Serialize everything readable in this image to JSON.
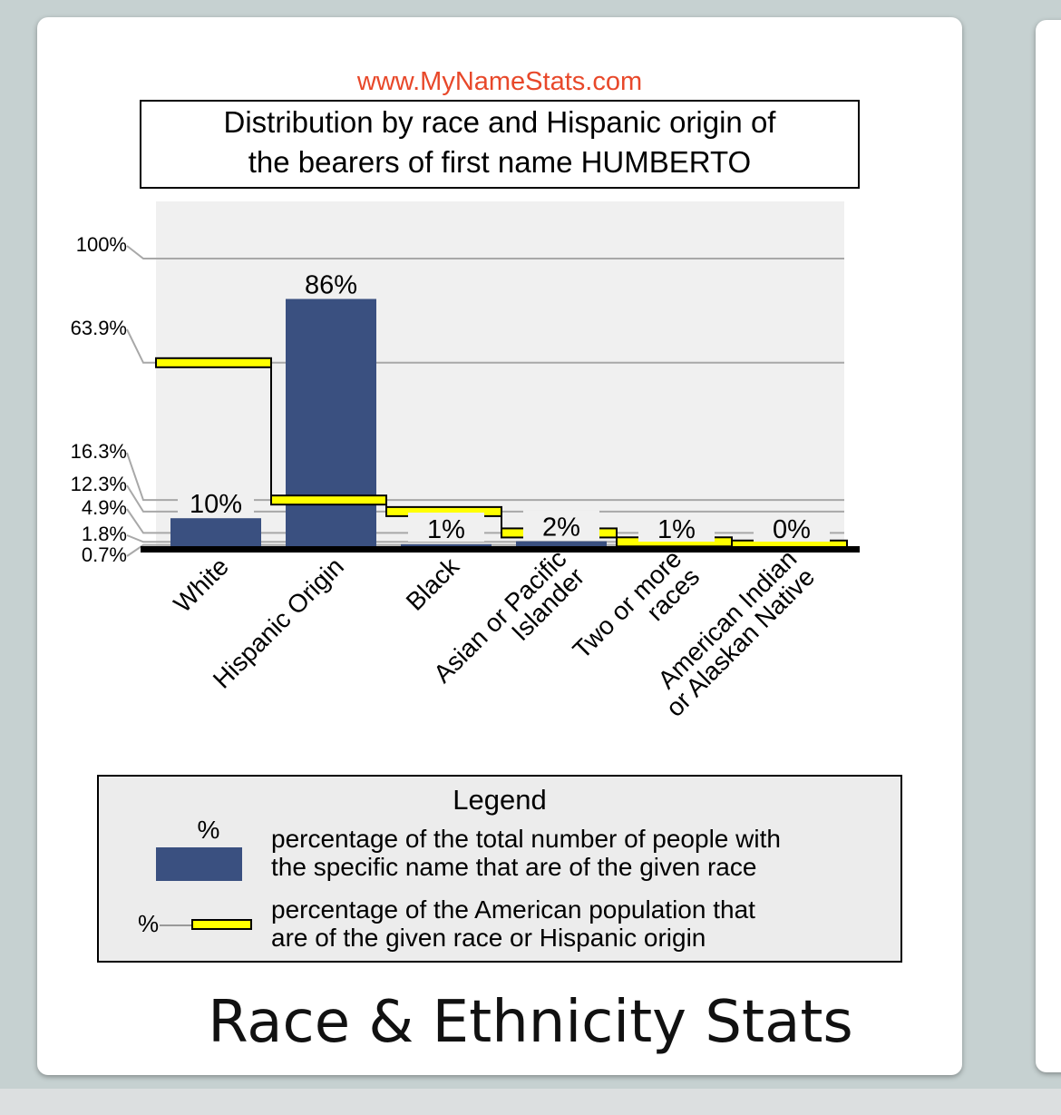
{
  "site": "www.MyNameStats.com",
  "card_title": "Race & Ethnicity Stats",
  "chart_data": {
    "type": "bar",
    "title_lines": [
      "Distribution by race and Hispanic origin of",
      "the bearers of first name HUMBERTO"
    ],
    "categories": [
      [
        "White"
      ],
      [
        "Hispanic Origin"
      ],
      [
        "Black"
      ],
      [
        "Asian or Pacific",
        "Islander"
      ],
      [
        "Two or more",
        "races"
      ],
      [
        "American Indian",
        "or Alaskan Native"
      ]
    ],
    "series": [
      {
        "values": [
          10,
          86,
          1,
          2,
          1,
          0
        ],
        "labels": [
          "10%",
          "86%",
          "1%",
          "2%",
          "1%",
          "0%"
        ]
      },
      {
        "values": [
          63.9,
          16.3,
          12.3,
          4.9,
          1.8,
          0.7
        ]
      }
    ],
    "yticks": [
      "100%",
      "63.9%",
      "16.3%",
      "12.3%",
      "4.9%",
      "1.8%",
      "0.7%"
    ],
    "ylim": [
      0,
      100
    ],
    "legend": {
      "title": "Legend",
      "bar_symbol": "%",
      "bar_text": [
        "percentage of the total number of people with",
        "the specific name that are of the given race"
      ],
      "line_symbol": "%",
      "line_text": [
        "percentage of the American population that",
        "are of the given race or Hispanic origin"
      ]
    },
    "colors": {
      "bar": "#3a5080",
      "marker": "#ffff00",
      "site": "#e8482a",
      "plot_bg": "#f0f0f0"
    }
  }
}
